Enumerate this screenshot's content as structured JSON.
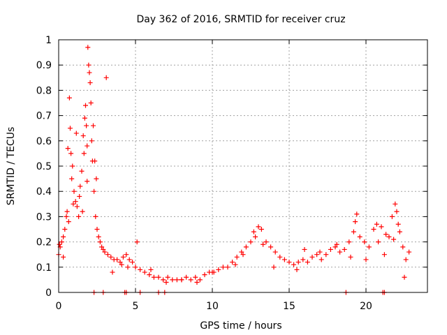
{
  "chart_data": {
    "type": "scatter",
    "title": "Day 362 of 2016, SRMTID for receiver cruz",
    "xlabel": "GPS time / hours",
    "ylabel": "SRMTID / TECUs",
    "xlim": [
      0,
      24
    ],
    "ylim": [
      0,
      1
    ],
    "x_ticks": [
      0,
      5,
      10,
      15,
      20
    ],
    "x_tick_labels": [
      "0",
      "5",
      "10",
      "15",
      "20"
    ],
    "y_ticks": [
      0,
      0.1,
      0.2,
      0.3,
      0.4,
      0.5,
      0.6,
      0.7,
      0.8,
      0.9,
      1
    ],
    "y_tick_labels": [
      "0",
      "0.1",
      "0.2",
      "0.3",
      "0.4",
      "0.5",
      "0.6",
      "0.7",
      "0.8",
      "0.9",
      "1"
    ],
    "grid": true,
    "marker": "+",
    "series": [
      {
        "name": "SRMTID",
        "color": "#ff0000",
        "x": [
          0.0,
          0.1,
          0.2,
          0.3,
          0.4,
          0.5,
          0.6,
          0.7,
          0.75,
          0.8,
          0.85,
          0.9,
          1.0,
          1.1,
          1.2,
          1.3,
          1.4,
          1.5,
          1.6,
          1.7,
          1.75,
          1.8,
          1.85,
          1.9,
          1.95,
          2.0,
          2.05,
          2.1,
          2.15,
          2.2,
          2.3,
          2.4,
          2.5,
          2.6,
          2.7,
          2.8,
          2.9,
          3.0,
          3.2,
          3.4,
          3.6,
          3.8,
          4.0,
          4.2,
          4.4,
          4.6,
          4.8,
          5.0,
          5.3,
          5.6,
          5.9,
          6.2,
          6.5,
          6.8,
          7.1,
          7.4,
          7.7,
          8.0,
          8.3,
          8.6,
          8.9,
          9.2,
          9.5,
          9.8,
          10.1,
          10.4,
          10.7,
          11.0,
          11.3,
          11.6,
          11.9,
          12.2,
          12.5,
          12.8,
          13.0,
          13.2,
          13.5,
          13.8,
          14.1,
          14.4,
          14.7,
          15.0,
          15.3,
          15.6,
          15.9,
          16.2,
          16.5,
          16.8,
          17.1,
          17.4,
          17.7,
          18.0,
          18.3,
          18.6,
          18.9,
          19.2,
          19.4,
          19.6,
          19.9,
          20.2,
          20.5,
          20.8,
          21.0,
          21.2,
          21.5,
          21.7,
          21.9,
          22.0,
          22.2,
          22.4,
          22.6,
          22.8,
          0.05,
          0.3,
          0.55,
          0.65,
          0.95,
          1.15,
          1.35,
          1.55,
          1.65,
          1.85,
          2.25,
          2.35,
          2.45,
          3.1,
          3.5,
          4.1,
          4.5,
          5.1,
          6.0,
          7.0,
          8.0,
          9.0,
          10.0,
          11.5,
          12.0,
          12.7,
          13.3,
          14.0,
          15.5,
          16.0,
          17.0,
          18.1,
          19.0,
          19.3,
          20.0,
          20.7,
          21.3,
          21.8,
          22.1,
          22.5,
          2.3,
          2.9,
          4.3,
          4.4,
          5.3,
          6.5,
          6.9,
          18.7,
          21.1,
          21.2
        ],
        "values": [
          0.15,
          0.18,
          0.2,
          0.22,
          0.25,
          0.3,
          0.57,
          0.77,
          0.65,
          0.55,
          0.45,
          0.5,
          0.4,
          0.36,
          0.34,
          0.3,
          0.42,
          0.48,
          0.62,
          0.69,
          0.74,
          0.66,
          0.58,
          0.97,
          0.9,
          0.87,
          0.83,
          0.75,
          0.6,
          0.52,
          0.4,
          0.3,
          0.25,
          0.22,
          0.2,
          0.18,
          0.17,
          0.16,
          0.15,
          0.14,
          0.13,
          0.13,
          0.12,
          0.14,
          0.15,
          0.13,
          0.12,
          0.1,
          0.09,
          0.08,
          0.07,
          0.06,
          0.06,
          0.05,
          0.06,
          0.05,
          0.05,
          0.05,
          0.06,
          0.05,
          0.06,
          0.05,
          0.07,
          0.08,
          0.08,
          0.09,
          0.1,
          0.1,
          0.12,
          0.14,
          0.16,
          0.18,
          0.2,
          0.22,
          0.26,
          0.25,
          0.2,
          0.18,
          0.16,
          0.14,
          0.13,
          0.12,
          0.11,
          0.12,
          0.13,
          0.12,
          0.14,
          0.15,
          0.13,
          0.15,
          0.17,
          0.18,
          0.16,
          0.17,
          0.2,
          0.24,
          0.31,
          0.22,
          0.2,
          0.18,
          0.25,
          0.2,
          0.26,
          0.15,
          0.22,
          0.3,
          0.35,
          0.32,
          0.24,
          0.18,
          0.13,
          0.16,
          0.19,
          0.14,
          0.32,
          0.28,
          0.35,
          0.63,
          0.38,
          0.32,
          0.55,
          0.44,
          0.66,
          0.52,
          0.45,
          0.85,
          0.08,
          0.11,
          0.1,
          0.2,
          0.09,
          0.04,
          0.05,
          0.04,
          0.08,
          0.11,
          0.15,
          0.24,
          0.19,
          0.1,
          0.09,
          0.17,
          0.16,
          0.19,
          0.14,
          0.28,
          0.13,
          0.27,
          0.23,
          0.21,
          0.27,
          0.06,
          0.0,
          0.0,
          0.0,
          0.0,
          0.0,
          0.0,
          0.0,
          0.0,
          0.0,
          0.0
        ]
      }
    ]
  }
}
